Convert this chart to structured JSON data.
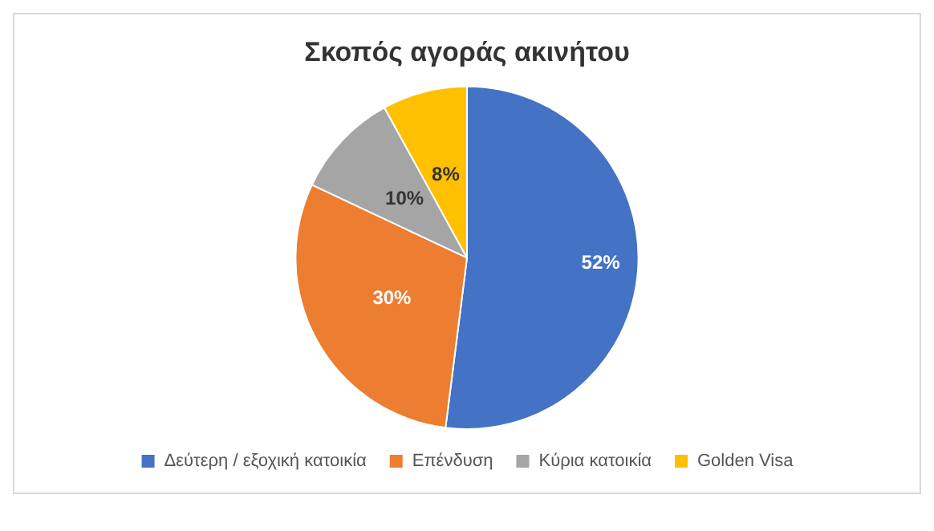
{
  "chart_data": {
    "type": "pie",
    "title": "Σκοπός αγοράς ακινήτου",
    "categories": [
      "Δεύτερη / εξοχική κατοικία",
      "Επένδυση",
      "Κύρια κατοικία",
      "Golden Visa"
    ],
    "values": [
      52,
      30,
      10,
      8
    ],
    "colors": [
      "#4472c4",
      "#ed7d31",
      "#a5a5a5",
      "#ffc000"
    ],
    "value_labels": [
      "52%",
      "30%",
      "10%",
      "8%"
    ],
    "legend": "bottom"
  }
}
